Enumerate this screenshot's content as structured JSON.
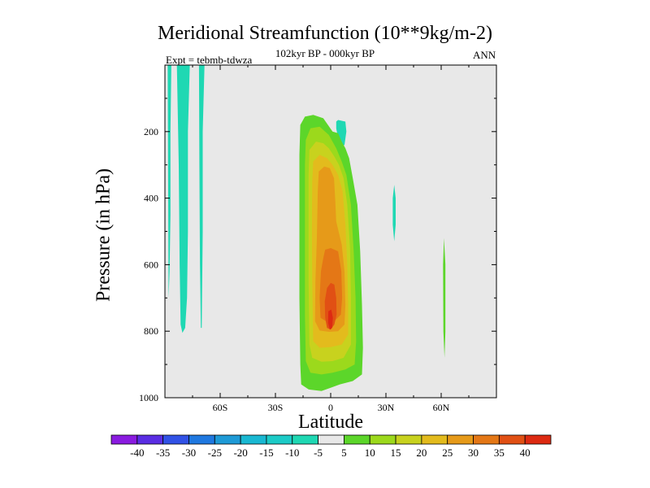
{
  "chart_data": {
    "type": "contour",
    "title": "Meridional Streamfunction (10**9kg/m-2)",
    "subtitle": "102kyr BP - 000kyr BP",
    "left_string": "Expt = tebmb-tdwza",
    "right_string": "ANN",
    "xlabel": "Latitude",
    "ylabel": "Pressure (in hPa)",
    "xlim": [
      -90,
      90
    ],
    "ylim": [
      1000,
      0
    ],
    "x_ticks": [
      {
        "value": -60,
        "label": "60S"
      },
      {
        "value": -30,
        "label": "30S"
      },
      {
        "value": 0,
        "label": "0"
      },
      {
        "value": 30,
        "label": "30N"
      },
      {
        "value": 60,
        "label": "60N"
      }
    ],
    "y_ticks": [
      {
        "value": 200,
        "label": "200"
      },
      {
        "value": 400,
        "label": "400"
      },
      {
        "value": 600,
        "label": "600"
      },
      {
        "value": 800,
        "label": "800"
      },
      {
        "value": 1000,
        "label": "1000"
      }
    ],
    "background_color": "#e8e8e8",
    "colorbar": {
      "levels": [
        "-40",
        "-35",
        "-30",
        "-25",
        "-20",
        "-15",
        "-10",
        "-5",
        "5",
        "10",
        "15",
        "20",
        "25",
        "30",
        "35",
        "40"
      ],
      "colors": [
        "#8a1be0",
        "#5a2de3",
        "#3152e6",
        "#1f78e0",
        "#1e9ad6",
        "#19b8d2",
        "#1ccbc7",
        "#1fd8b3",
        "#e8e8e8",
        "#5cd62a",
        "#9cd91c",
        "#c8d21e",
        "#e3bb1d",
        "#e69a19",
        "#e47716",
        "#e15014",
        "#dd2a12"
      ]
    },
    "regions": [
      {
        "name": "neg-band-1",
        "color": "#1fd8b3",
        "points": [
          [
            -88.5,
            0
          ],
          [
            -86.5,
            0
          ],
          [
            -87,
            200
          ],
          [
            -87,
            450
          ],
          [
            -87.5,
            620
          ],
          [
            -88,
            700
          ]
        ]
      },
      {
        "name": "neg-band-2",
        "color": "#1fd8b3",
        "points": [
          [
            -83.5,
            0
          ],
          [
            -76.5,
            0
          ],
          [
            -77.5,
            200
          ],
          [
            -77.5,
            500
          ],
          [
            -78,
            700
          ],
          [
            -79,
            790
          ],
          [
            -80.5,
            805
          ],
          [
            -81.5,
            780
          ],
          [
            -82,
            600
          ],
          [
            -82.5,
            300
          ]
        ]
      },
      {
        "name": "neg-band-3",
        "color": "#1fd8b3",
        "points": [
          [
            -71.5,
            0
          ],
          [
            -68.5,
            0
          ],
          [
            -69.5,
            200
          ],
          [
            -69.5,
            500
          ],
          [
            -70,
            790
          ],
          [
            -70.5,
            790
          ],
          [
            -71,
            600
          ],
          [
            -71.3,
            300
          ]
        ]
      },
      {
        "name": "neg-blob-1",
        "color": "#1fd8b3",
        "points": [
          [
            3,
            170
          ],
          [
            4,
            165
          ],
          [
            8,
            170
          ],
          [
            8.5,
            200
          ],
          [
            7.5,
            240
          ],
          [
            5,
            245
          ],
          [
            4,
            220
          ],
          [
            3,
            190
          ]
        ]
      },
      {
        "name": "neg-blob-2",
        "color": "#1fd8b3",
        "points": [
          [
            34.5,
            360
          ],
          [
            35.3,
            400
          ],
          [
            35.3,
            480
          ],
          [
            34.5,
            530
          ],
          [
            33.7,
            480
          ],
          [
            33.7,
            400
          ]
        ]
      },
      {
        "name": "pos-blob-1",
        "color": "#5cd62a",
        "points": [
          [
            61.5,
            520
          ],
          [
            62.3,
            600
          ],
          [
            62.3,
            800
          ],
          [
            61.8,
            880
          ],
          [
            61.2,
            800
          ],
          [
            61,
            600
          ]
        ]
      },
      {
        "name": "pos-5",
        "color": "#5cd62a",
        "points": [
          [
            -17,
            270
          ],
          [
            -16.5,
            180
          ],
          [
            -14,
            155
          ],
          [
            -9.5,
            150
          ],
          [
            -4,
            160
          ],
          [
            1,
            200
          ],
          [
            4,
            205
          ],
          [
            6,
            230
          ],
          [
            8,
            250
          ],
          [
            10,
            280
          ],
          [
            12,
            340
          ],
          [
            14.5,
            420
          ],
          [
            16,
            560
          ],
          [
            17,
            720
          ],
          [
            17.5,
            850
          ],
          [
            17,
            930
          ],
          [
            12,
            950
          ],
          [
            5,
            960
          ],
          [
            0,
            970
          ],
          [
            -5,
            980
          ],
          [
            -12,
            975
          ],
          [
            -16,
            960
          ],
          [
            -16.5,
            900
          ],
          [
            -17,
            700
          ],
          [
            -17,
            500
          ]
        ]
      },
      {
        "name": "pos-10",
        "color": "#9cd91c",
        "points": [
          [
            -14,
            300
          ],
          [
            -13.5,
            225
          ],
          [
            -11,
            190
          ],
          [
            -6,
            185
          ],
          [
            -1,
            210
          ],
          [
            3,
            250
          ],
          [
            6,
            290
          ],
          [
            8.5,
            330
          ],
          [
            11,
            420
          ],
          [
            12.5,
            560
          ],
          [
            13.5,
            700
          ],
          [
            13.8,
            830
          ],
          [
            13,
            900
          ],
          [
            8,
            915
          ],
          [
            1,
            925
          ],
          [
            -5,
            930
          ],
          [
            -11,
            925
          ],
          [
            -13.5,
            890
          ],
          [
            -14,
            750
          ],
          [
            -14,
            550
          ]
        ]
      },
      {
        "name": "pos-15",
        "color": "#c8d21e",
        "points": [
          [
            -12,
            330
          ],
          [
            -11.5,
            255
          ],
          [
            -8,
            230
          ],
          [
            -4,
            235
          ],
          [
            -1,
            250
          ],
          [
            2,
            275
          ],
          [
            4.5,
            300
          ],
          [
            7,
            340
          ],
          [
            9,
            420
          ],
          [
            10.5,
            550
          ],
          [
            11,
            700
          ],
          [
            11,
            840
          ],
          [
            7,
            880
          ],
          [
            1,
            890
          ],
          [
            -5,
            892
          ],
          [
            -10,
            880
          ],
          [
            -11.5,
            840
          ],
          [
            -12,
            650
          ]
        ]
      },
      {
        "name": "pos-20",
        "color": "#e3bb1d",
        "points": [
          [
            -10,
            350
          ],
          [
            -9.5,
            290
          ],
          [
            -6,
            270
          ],
          [
            -2,
            280
          ],
          [
            1,
            300
          ],
          [
            4,
            330
          ],
          [
            6.5,
            380
          ],
          [
            8,
            480
          ],
          [
            9,
            600
          ],
          [
            9.5,
            720
          ],
          [
            9.5,
            810
          ],
          [
            6,
            840
          ],
          [
            0,
            848
          ],
          [
            -6,
            850
          ],
          [
            -9.5,
            830
          ],
          [
            -10,
            650
          ],
          [
            -10.2,
            500
          ]
        ]
      },
      {
        "name": "pos-25",
        "color": "#e69a19",
        "points": [
          [
            -7,
            380
          ],
          [
            -6.5,
            320
          ],
          [
            -3.5,
            305
          ],
          [
            -0.5,
            310
          ],
          [
            1.8,
            340
          ],
          [
            2.5,
            410
          ],
          [
            3,
            470
          ],
          [
            6,
            540
          ],
          [
            7.5,
            620
          ],
          [
            8,
            720
          ],
          [
            7.5,
            780
          ],
          [
            4,
            800
          ],
          [
            -1,
            802
          ],
          [
            -6,
            798
          ],
          [
            -8.5,
            770
          ],
          [
            -8.3,
            650
          ],
          [
            -7.5,
            520
          ]
        ]
      },
      {
        "name": "pos-30",
        "color": "#e47716",
        "points": [
          [
            -4,
            580
          ],
          [
            -3,
            555
          ],
          [
            0,
            550
          ],
          [
            4,
            560
          ],
          [
            5.8,
            620
          ],
          [
            6.2,
            700
          ],
          [
            5.5,
            750
          ],
          [
            2,
            770
          ],
          [
            -2,
            772
          ],
          [
            -5.5,
            760
          ],
          [
            -6,
            700
          ],
          [
            -5.3,
            620
          ]
        ]
      },
      {
        "name": "pos-35",
        "color": "#e15014",
        "points": [
          [
            -2,
            670
          ],
          [
            0,
            655
          ],
          [
            2,
            660
          ],
          [
            3,
            700
          ],
          [
            3.2,
            750
          ],
          [
            2,
            780
          ],
          [
            0,
            795
          ],
          [
            -2,
            790
          ],
          [
            -3,
            760
          ],
          [
            -3.2,
            710
          ]
        ]
      },
      {
        "name": "pos-40",
        "color": "#dd2a12",
        "points": [
          [
            -1.3,
            740
          ],
          [
            0.3,
            735
          ],
          [
            1.2,
            760
          ],
          [
            0.8,
            790
          ],
          [
            -0.5,
            795
          ],
          [
            -1.4,
            775
          ]
        ]
      }
    ]
  }
}
